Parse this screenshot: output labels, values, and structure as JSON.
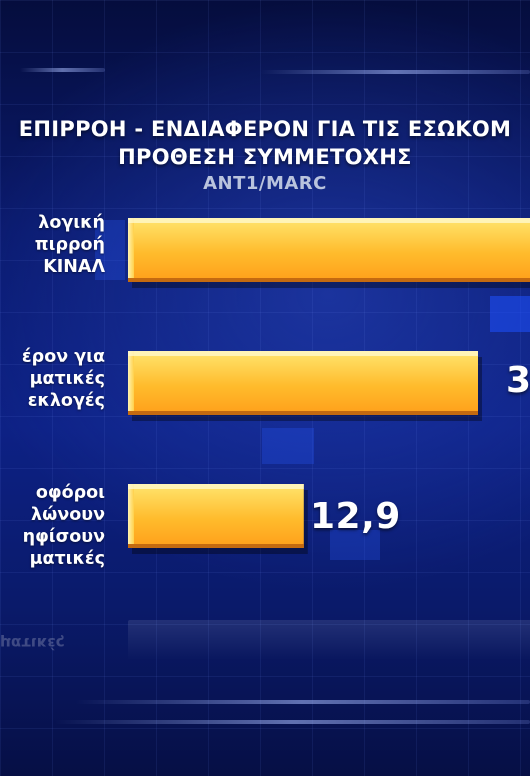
{
  "title_line1": "ΕΠΙΡΡΟΗ - ΕΝΔΙΑΦΕΡΟΝ ΓΙΑ ΤΙΣ ΕΣΩΚΟΜ",
  "title_line2": "ΠΡΟΘΕΣΗ ΣΥΜΜΕΤΟΧΗΣ",
  "source": "ANT1/MARC",
  "chart_data": {
    "type": "bar",
    "orientation": "horizontal",
    "title": "ΕΠΙΡΡΟΗ - ΕΝΔΙΑΦΕΡΟΝ ΓΙΑ ΤΙΣ ΕΣΩΚΟΜ ΠΡΟΘΕΣΗ ΣΥΜΜΕΤΟΧΗΣ",
    "categories": [
      [
        "λογική",
        "πιρροή",
        "ΚΙΝΑΛ"
      ],
      [
        "έρον για",
        "ματικές",
        "εκλογές"
      ],
      [
        "οφόροι",
        "λώνουν",
        "ηφίσουν",
        "ματικές"
      ]
    ],
    "values": [
      null,
      null,
      12.9
    ],
    "value_labels": [
      "",
      "3",
      "12,9"
    ],
    "xlim": [
      0,
      29.5
    ],
    "colors": {
      "top": "#ffe56e",
      "mid": "#ffbb2c",
      "bottom": "#ff9f1a",
      "edge": "#c46a10"
    }
  },
  "mirror_text": "ματικές"
}
